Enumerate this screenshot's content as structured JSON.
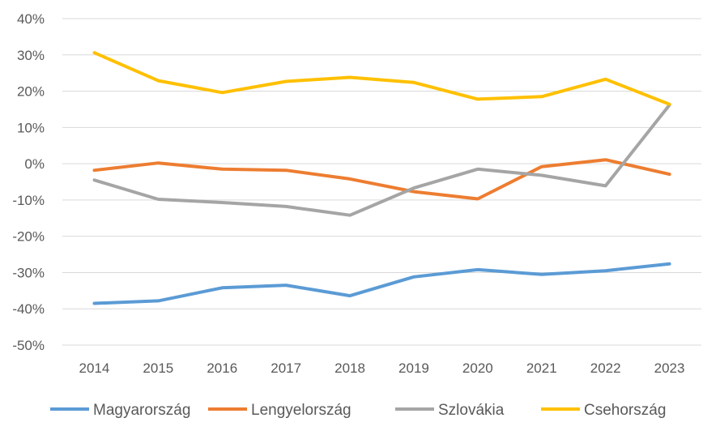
{
  "chart_data": {
    "type": "line",
    "title": "",
    "xlabel": "",
    "ylabel": "",
    "categories": [
      "2014",
      "2015",
      "2016",
      "2017",
      "2018",
      "2019",
      "2020",
      "2021",
      "2022",
      "2023"
    ],
    "ylim": [
      -50,
      40
    ],
    "yticks": [
      40,
      30,
      20,
      10,
      0,
      -10,
      -20,
      -30,
      -40,
      -50
    ],
    "ytick_labels": [
      "40%",
      "30%",
      "20%",
      "10%",
      "0%",
      "-10%",
      "-20%",
      "-30%",
      "-40%",
      "-50%"
    ],
    "y_unit": "%",
    "grid": true,
    "legend_position": "bottom",
    "series": [
      {
        "name": "Magyarország",
        "color": "#5b9bd5",
        "values": [
          -38.5,
          -37.8,
          -34.2,
          -33.5,
          -36.4,
          -31.2,
          -29.2,
          -30.5,
          -29.5,
          -27.6
        ]
      },
      {
        "name": "Lengyelország",
        "color": "#ed7d31",
        "values": [
          -1.8,
          0.2,
          -1.5,
          -1.8,
          -4.2,
          -7.7,
          -9.7,
          -0.8,
          1.1,
          -2.9
        ]
      },
      {
        "name": "Szlovákia",
        "color": "#a5a5a5",
        "values": [
          -4.5,
          -9.8,
          -10.7,
          -11.8,
          -14.2,
          -6.7,
          -1.5,
          -3.2,
          -6.1,
          16.2
        ]
      },
      {
        "name": "Csehország",
        "color": "#ffc000",
        "values": [
          30.6,
          22.9,
          19.6,
          22.7,
          23.8,
          22.4,
          17.8,
          18.5,
          23.3,
          16.4
        ]
      }
    ]
  }
}
